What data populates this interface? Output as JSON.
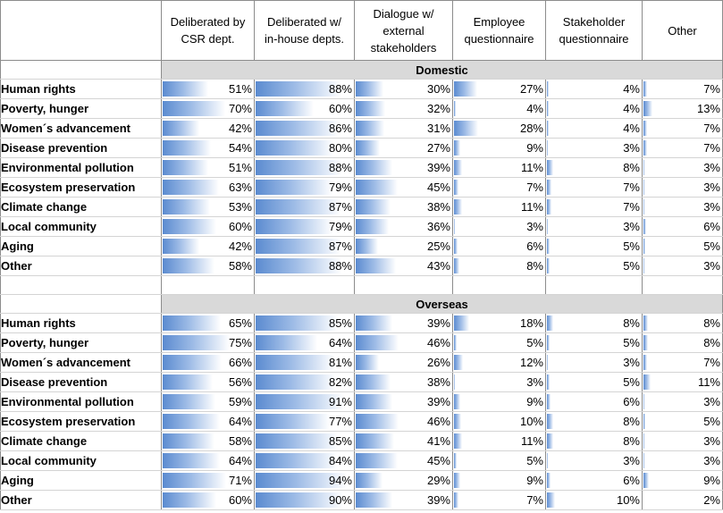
{
  "headers": [
    "",
    "Deliberated by CSR dept.",
    "Deliberated w/ in-house depts.",
    "Dialogue w/ external stakeholders",
    "Employee questionnaire",
    "Stakeholder questionnaire",
    "Other"
  ],
  "header_lines": [
    [
      ""
    ],
    [
      "Deliberated by",
      "CSR dept."
    ],
    [
      "Deliberated w/",
      "in-house depts."
    ],
    [
      "Dialogue w/",
      "external",
      "stakeholders"
    ],
    [
      "Employee",
      "questionnaire"
    ],
    [
      "Stakeholder",
      "questionnaire"
    ],
    [
      "Other"
    ]
  ],
  "sections": [
    {
      "title": "Domestic",
      "rows": [
        {
          "label": "Human rights",
          "values": [
            51,
            88,
            30,
            27,
            4,
            7
          ]
        },
        {
          "label": "Poverty, hunger",
          "values": [
            70,
            60,
            32,
            4,
            4,
            13
          ]
        },
        {
          "label": "Women´s advancement",
          "values": [
            42,
            86,
            31,
            28,
            4,
            7
          ]
        },
        {
          "label": "Disease prevention",
          "values": [
            54,
            80,
            27,
            9,
            3,
            7
          ]
        },
        {
          "label": "Environmental pollution",
          "values": [
            51,
            88,
            39,
            11,
            8,
            3
          ]
        },
        {
          "label": "Ecosystem preservation",
          "values": [
            63,
            79,
            45,
            7,
            7,
            3
          ]
        },
        {
          "label": "Climate change",
          "values": [
            53,
            87,
            38,
            11,
            7,
            3
          ]
        },
        {
          "label": "Local community",
          "values": [
            60,
            79,
            36,
            3,
            3,
            6
          ]
        },
        {
          "label": "Aging",
          "values": [
            42,
            87,
            25,
            6,
            5,
            5
          ]
        },
        {
          "label": "Other",
          "values": [
            58,
            88,
            43,
            8,
            5,
            3
          ]
        }
      ]
    },
    {
      "title": "Overseas",
      "rows": [
        {
          "label": "Human rights",
          "values": [
            65,
            85,
            39,
            18,
            8,
            8
          ]
        },
        {
          "label": "Poverty, hunger",
          "values": [
            75,
            64,
            46,
            5,
            5,
            8
          ]
        },
        {
          "label": "Women´s advancement",
          "values": [
            66,
            81,
            26,
            12,
            3,
            7
          ]
        },
        {
          "label": "Disease prevention",
          "values": [
            56,
            82,
            38,
            3,
            5,
            11
          ]
        },
        {
          "label": "Environmental pollution",
          "values": [
            59,
            91,
            39,
            9,
            6,
            3
          ]
        },
        {
          "label": "Ecosystem preservation",
          "values": [
            64,
            77,
            46,
            10,
            8,
            5
          ]
        },
        {
          "label": "Climate change",
          "values": [
            58,
            85,
            41,
            11,
            8,
            3
          ]
        },
        {
          "label": "Local community",
          "values": [
            64,
            84,
            45,
            5,
            3,
            3
          ]
        },
        {
          "label": "Aging",
          "values": [
            71,
            94,
            29,
            9,
            6,
            9
          ]
        },
        {
          "label": "Other",
          "values": [
            60,
            90,
            39,
            7,
            10,
            2
          ]
        }
      ]
    }
  ],
  "value_suffix": "%",
  "bar_colors": {
    "start": "#5b8bd0",
    "mid": "#9dbbe6",
    "end": "#ffffff"
  }
}
